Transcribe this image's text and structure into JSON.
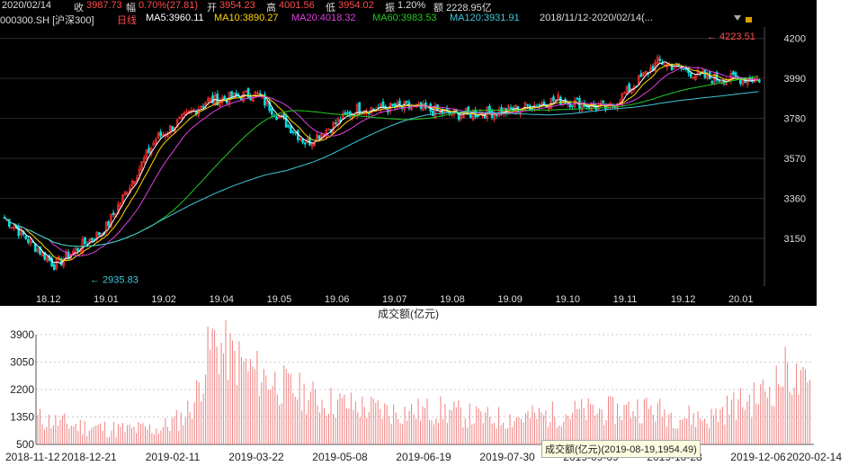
{
  "header": {
    "row1": [
      {
        "text": "2020/02/14",
        "color": "#dddddd"
      },
      {
        "text": "收",
        "color": "#dddddd"
      },
      {
        "text": "3987.73",
        "color": "#ff4b4b"
      },
      {
        "text": "幅",
        "color": "#dddddd"
      },
      {
        "text": "0.70%(27.81)",
        "color": "#ff4b4b"
      },
      {
        "text": "开",
        "color": "#dddddd"
      },
      {
        "text": "3954.23",
        "color": "#ff4b4b"
      },
      {
        "text": "高",
        "color": "#dddddd"
      },
      {
        "text": "4001.56",
        "color": "#ff4b4b"
      },
      {
        "text": "低",
        "color": "#dddddd"
      },
      {
        "text": "3954.02",
        "color": "#ff4b4b"
      },
      {
        "text": "振",
        "color": "#dddddd"
      },
      {
        "text": "1.20%",
        "color": "#dddddd"
      },
      {
        "text": "额",
        "color": "#dddddd"
      },
      {
        "text": "2228.95亿",
        "color": "#dddddd"
      }
    ],
    "row2": [
      {
        "text": "000300.SH [沪深300]",
        "color": "#dddddd"
      },
      {
        "text": "日线",
        "color": "#ff4b4b"
      },
      {
        "text": "MA5:3960.11",
        "color": "#ffffff"
      },
      {
        "text": "MA10:3890.27",
        "color": "#ffd700"
      },
      {
        "text": "MA20:4018.32",
        "color": "#e040e0"
      },
      {
        "text": "MA60:3983.53",
        "color": "#22cc22"
      },
      {
        "text": "MA120:3931.91",
        "color": "#40c8d8"
      },
      {
        "text": "2018/11/12-2020/02/14(...",
        "color": "#dddddd"
      }
    ]
  },
  "colors": {
    "up": "#ff3030",
    "down": "#00e0e0",
    "ma5": "#ffffff",
    "ma10": "#ffd700",
    "ma20": "#e040e0",
    "ma60": "#22cc22",
    "ma120": "#40c8d8",
    "volume": "#f08080"
  },
  "icons": [
    "dropdown-arrow-icon",
    "lock-icon"
  ],
  "volume_caption": "成交额(亿元)",
  "tooltip": "成交额(亿元)(2019-08-19,1954.49)",
  "annotations": {
    "high": "4223.51",
    "low": "2935.83"
  },
  "chart_data": [
    {
      "type": "candlestick",
      "price_axis": {
        "ticks": [
          4200,
          3990,
          3780,
          3570,
          3360,
          3150
        ],
        "range": [
          2900,
          4260
        ]
      },
      "x_tick_labels": [
        "18.12",
        "19.01",
        "19.02",
        "19.04",
        "19.05",
        "19.06",
        "19.07",
        "19.08",
        "19.09",
        "19.10",
        "19.11",
        "19.12",
        "20.01"
      ],
      "period": "2018/11/12-2020/02/14",
      "monthly_close": [
        [
          "2018-11",
          3260
        ],
        [
          "2018-12",
          3010
        ],
        [
          "2019-01",
          3200
        ],
        [
          "2019-02",
          3670
        ],
        [
          "2019-03",
          3870
        ],
        [
          "2019-04",
          3910
        ],
        [
          "2019-05",
          3650
        ],
        [
          "2019-06",
          3830
        ],
        [
          "2019-07",
          3840
        ],
        [
          "2019-08",
          3800
        ],
        [
          "2019-09",
          3820
        ],
        [
          "2019-10",
          3880
        ],
        [
          "2019-11",
          3830
        ],
        [
          "2019-12",
          4080
        ],
        [
          "2020-01",
          3990
        ],
        [
          "2020-02",
          3988
        ]
      ],
      "last_candle": {
        "date": "2020/02/14",
        "open": 3954.23,
        "high": 4001.56,
        "low": 3954.02,
        "close": 3987.73
      }
    },
    {
      "type": "bar",
      "title": "成交额(亿元)",
      "y_ticks": [
        3900,
        3050,
        2200,
        1350,
        500
      ],
      "ylim": [
        500,
        3900
      ],
      "x_tick_labels": [
        "2018-11-12",
        "2018-12-21",
        "2019-02-11",
        "2019-03-22",
        "2019-05-08",
        "2019-06-19",
        "2019-07-30",
        "2019-09-09",
        "2019-10-28",
        "2019-12-06",
        "2020-02-14"
      ],
      "series_profile": [
        [
          0,
          1300
        ],
        [
          20,
          1050
        ],
        [
          40,
          950
        ],
        [
          55,
          1000
        ],
        [
          65,
          1350
        ],
        [
          70,
          1850
        ],
        [
          78,
          3700
        ],
        [
          85,
          3300
        ],
        [
          95,
          2800
        ],
        [
          110,
          2300
        ],
        [
          125,
          1900
        ],
        [
          140,
          1700
        ],
        [
          160,
          1500
        ],
        [
          180,
          1550
        ],
        [
          200,
          1300
        ],
        [
          220,
          1350
        ],
        [
          240,
          1500
        ],
        [
          260,
          1550
        ],
        [
          270,
          1650
        ],
        [
          285,
          1400
        ],
        [
          300,
          1300
        ],
        [
          310,
          1700
        ],
        [
          320,
          1900
        ],
        [
          330,
          2400
        ],
        [
          335,
          2850
        ],
        [
          340,
          2350
        ],
        [
          346,
          2200
        ]
      ]
    }
  ]
}
